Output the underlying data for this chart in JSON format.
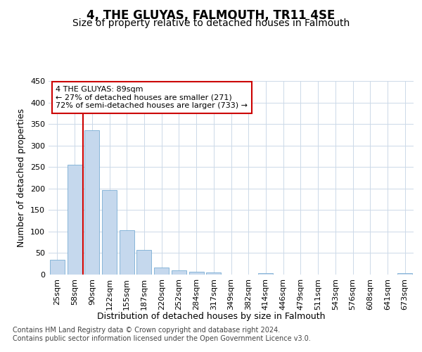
{
  "title": "4, THE GLUYAS, FALMOUTH, TR11 4SE",
  "subtitle": "Size of property relative to detached houses in Falmouth",
  "xlabel": "Distribution of detached houses by size in Falmouth",
  "ylabel": "Number of detached properties",
  "categories": [
    "25sqm",
    "58sqm",
    "90sqm",
    "122sqm",
    "155sqm",
    "187sqm",
    "220sqm",
    "252sqm",
    "284sqm",
    "317sqm",
    "349sqm",
    "382sqm",
    "414sqm",
    "446sqm",
    "479sqm",
    "511sqm",
    "543sqm",
    "576sqm",
    "608sqm",
    "641sqm",
    "673sqm"
  ],
  "values": [
    35,
    255,
    335,
    196,
    103,
    57,
    17,
    10,
    7,
    5,
    0,
    0,
    4,
    0,
    0,
    0,
    0,
    0,
    0,
    0,
    4
  ],
  "bar_color": "#c5d8ed",
  "bar_edge_color": "#7aadd4",
  "vline_color": "#cc0000",
  "vline_x_index": 2,
  "annotation_text": "4 THE GLUYAS: 89sqm\n← 27% of detached houses are smaller (271)\n72% of semi-detached houses are larger (733) →",
  "annotation_box_color": "#ffffff",
  "annotation_box_edge": "#cc0000",
  "ylim": [
    0,
    450
  ],
  "yticks": [
    0,
    50,
    100,
    150,
    200,
    250,
    300,
    350,
    400,
    450
  ],
  "footer_line1": "Contains HM Land Registry data © Crown copyright and database right 2024.",
  "footer_line2": "Contains public sector information licensed under the Open Government Licence v3.0.",
  "title_fontsize": 12,
  "subtitle_fontsize": 10,
  "ylabel_fontsize": 9,
  "xlabel_fontsize": 9,
  "tick_fontsize": 8,
  "annotation_fontsize": 8,
  "footer_fontsize": 7,
  "background_color": "#ffffff",
  "grid_color": "#ccd9e8"
}
